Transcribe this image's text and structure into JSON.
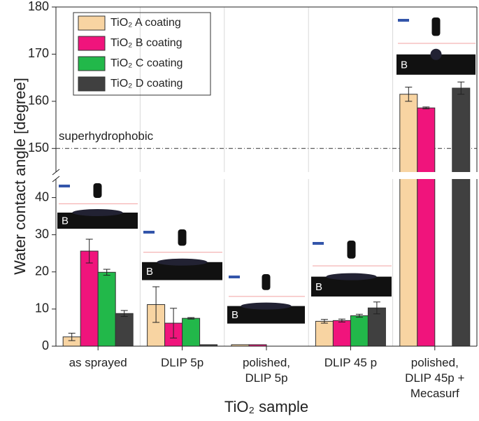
{
  "chart_data": {
    "type": "bar",
    "x_label": "TiO₂ sample",
    "y_label": "Water contact angle [degree]",
    "categories": [
      "as sprayed",
      "DLIP 5p",
      "polished,\nDLIP 5p",
      "DLIP 45 p",
      "polished,\nDLIP 45p +\nMecasurf"
    ],
    "series": [
      {
        "name": "TiO₂ A coating",
        "color": "#f8d4a2",
        "values": [
          2.5,
          11.2,
          0.4,
          6.7,
          161.5
        ],
        "errors": [
          1.0,
          4.8,
          null,
          0.5,
          1.5
        ]
      },
      {
        "name": "TiO₂ B coating",
        "color": "#f0147c",
        "values": [
          25.6,
          6.2,
          0.4,
          6.9,
          158.6
        ],
        "errors": [
          3.2,
          4.0,
          null,
          0.4,
          0.2
        ]
      },
      {
        "name": "TiO₂ C coating",
        "color": "#22b84a",
        "values": [
          19.9,
          7.5,
          null,
          8.2,
          null
        ],
        "errors": [
          0.8,
          0.2,
          null,
          0.4,
          null
        ]
      },
      {
        "name": "TiO₂ D coating",
        "color": "#404040",
        "values": [
          8.8,
          0.4,
          null,
          10.3,
          162.8
        ],
        "errors": [
          0.8,
          null,
          null,
          1.6,
          1.3
        ]
      }
    ],
    "ylim": [
      0,
      180
    ],
    "ybreak": [
      45,
      145
    ],
    "yticks": [
      0,
      10,
      20,
      30,
      40,
      150,
      160,
      170,
      180
    ],
    "reference_line": {
      "value": 150,
      "label": "superhydrophobic"
    },
    "inset_labels": [
      "B",
      "B",
      "B",
      "B",
      "B"
    ],
    "legend": "upper left"
  }
}
